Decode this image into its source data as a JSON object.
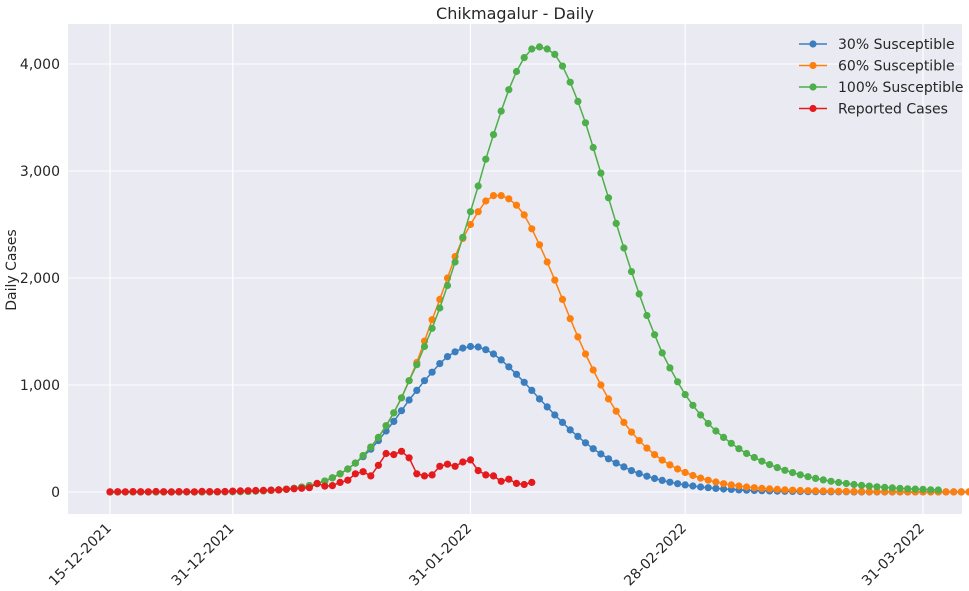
{
  "chart_data": {
    "type": "line",
    "title": "Chikmagalur - Daily",
    "xlabel": "",
    "ylabel": "Daily Cases",
    "x_start": "2021-12-15",
    "x_ticks": [
      "15-12-2021",
      "31-12-2021",
      "31-01-2022",
      "28-02-2022",
      "31-03-2022"
    ],
    "y_ticks": [
      "0",
      "1,000",
      "2,000",
      "3,000",
      "4,000"
    ],
    "ylim": [
      -200,
      4300
    ],
    "grid": true,
    "legend_position": "top-right",
    "series": [
      {
        "name": "30% Susceptible",
        "color": "#3a7ebf",
        "start_date": "2021-12-15",
        "values": [
          0,
          0,
          0,
          0,
          0,
          0,
          0,
          0,
          0,
          0,
          0,
          0,
          0,
          0,
          1,
          2,
          3,
          4,
          6,
          8,
          11,
          15,
          20,
          26,
          35,
          46,
          60,
          78,
          102,
          133,
          170,
          215,
          270,
          330,
          400,
          480,
          570,
          660,
          760,
          860,
          950,
          1040,
          1120,
          1200,
          1265,
          1310,
          1345,
          1360,
          1355,
          1330,
          1290,
          1235,
          1170,
          1100,
          1025,
          950,
          870,
          795,
          720,
          650,
          580,
          520,
          460,
          405,
          355,
          310,
          270,
          235,
          200,
          172,
          148,
          126,
          108,
          92,
          78,
          66,
          56,
          47,
          40,
          34,
          28,
          24,
          20,
          17,
          14,
          12,
          10,
          8,
          7,
          6,
          5,
          4,
          3,
          3,
          2,
          2,
          2,
          1,
          1,
          1,
          1,
          1,
          1,
          1,
          1,
          1,
          1,
          1,
          1,
          1,
          1,
          1,
          1
        ]
      },
      {
        "name": "60% Susceptible",
        "color": "#ff7f0e",
        "start_date": "2021-12-15",
        "values": [
          0,
          0,
          0,
          0,
          0,
          0,
          0,
          0,
          0,
          0,
          0,
          0,
          0,
          0,
          1,
          2,
          3,
          4,
          6,
          8,
          11,
          15,
          20,
          26,
          35,
          46,
          60,
          78,
          102,
          133,
          170,
          215,
          270,
          340,
          420,
          510,
          620,
          740,
          880,
          1040,
          1210,
          1410,
          1610,
          1800,
          2000,
          2200,
          2370,
          2500,
          2620,
          2720,
          2770,
          2770,
          2740,
          2680,
          2590,
          2460,
          2310,
          2150,
          1980,
          1800,
          1620,
          1450,
          1290,
          1140,
          1000,
          870,
          755,
          650,
          560,
          480,
          410,
          350,
          298,
          253,
          215,
          182,
          154,
          130,
          110,
          93,
          78,
          66,
          56,
          47,
          40,
          34,
          29,
          24,
          20,
          17,
          14,
          12,
          10,
          9,
          8,
          7,
          6,
          5,
          4,
          3,
          3,
          2,
          2,
          2,
          1,
          1,
          1,
          1,
          1,
          1,
          1,
          1,
          1,
          1,
          1
        ]
      },
      {
        "name": "100% Susceptible",
        "color": "#4daf4a",
        "start_date": "2021-12-15",
        "values": [
          0,
          0,
          0,
          0,
          0,
          0,
          0,
          0,
          0,
          0,
          0,
          0,
          0,
          0,
          1,
          2,
          3,
          4,
          6,
          8,
          11,
          15,
          20,
          26,
          35,
          46,
          60,
          78,
          102,
          133,
          170,
          215,
          270,
          340,
          420,
          510,
          620,
          740,
          880,
          1040,
          1190,
          1360,
          1530,
          1720,
          1930,
          2150,
          2380,
          2620,
          2860,
          3110,
          3340,
          3560,
          3760,
          3930,
          4060,
          4140,
          4160,
          4140,
          4090,
          3980,
          3830,
          3650,
          3450,
          3220,
          2980,
          2750,
          2510,
          2280,
          2060,
          1850,
          1650,
          1470,
          1300,
          1160,
          1030,
          910,
          810,
          720,
          640,
          570,
          510,
          455,
          405,
          360,
          322,
          288,
          256,
          228,
          203,
          181,
          161,
          143,
          127,
          113,
          100,
          89,
          79,
          70,
          62,
          55,
          49,
          43,
          38,
          34,
          30,
          27,
          24,
          21,
          19
        ]
      },
      {
        "name": "Reported Cases",
        "color": "#e41a1c",
        "start_date": "2021-12-15",
        "values": [
          2,
          3,
          2,
          4,
          3,
          2,
          5,
          3,
          1,
          4,
          3,
          2,
          6,
          4,
          3,
          5,
          8,
          10,
          12,
          14,
          15,
          18,
          20,
          25,
          30,
          35,
          40,
          80,
          55,
          60,
          90,
          110,
          170,
          190,
          150,
          250,
          360,
          350,
          380,
          320,
          170,
          150,
          160,
          240,
          260,
          240,
          280,
          300,
          200,
          160,
          150,
          100,
          120,
          80,
          70,
          90
        ]
      }
    ]
  }
}
